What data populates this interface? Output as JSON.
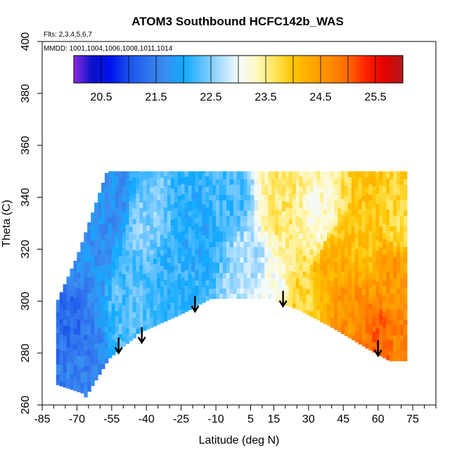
{
  "chart_data": {
    "type": "heatmap",
    "title": "ATOM3 Southbound HCFC142b_WAS",
    "flights_note": "Flts: 2,3,4,5,6,7",
    "dates_note": "MMDD: 1001,1004,1006,1008,1011,1014",
    "xlabel": "Latitude (deg N)",
    "ylabel": "Theta (C)",
    "xlim": [
      -85,
      85
    ],
    "ylim": [
      260,
      400
    ],
    "x_major_ticks": [
      -85,
      -70,
      -55,
      -40,
      -25,
      -10,
      5,
      15,
      30,
      45,
      60,
      75
    ],
    "x_minor_ticks": [
      -80,
      -75,
      -65,
      -60,
      -50,
      -45,
      -35,
      -30,
      -20,
      -15,
      -5,
      0,
      10,
      20,
      25,
      35,
      40,
      50,
      55,
      65,
      70,
      80,
      85
    ],
    "y_ticks": [
      260,
      280,
      300,
      320,
      340,
      360,
      380,
      400
    ],
    "colorbar": {
      "range": [
        20,
        26
      ],
      "tick_values": [
        20.5,
        21.5,
        22.5,
        23.5,
        24.5,
        25.5
      ],
      "tick_labels": [
        "20.5",
        "21.5",
        "22.5",
        "23.5",
        "24.5",
        "25.5"
      ],
      "colors": [
        "#8a2be2",
        "#0a12c8",
        "#0012ee",
        "#1a50ea",
        "#2f72ee",
        "#3a8ef0",
        "#11aaff",
        "#5cc0ff",
        "#a8dcff",
        "#f4fbff",
        "#fff8c0",
        "#ffe45a",
        "#ffc400",
        "#ffa800",
        "#ff8c00",
        "#ff6a00",
        "#ff2000",
        "#e00000",
        "#b11a1a"
      ]
    },
    "field_samples": [
      {
        "lat": -72,
        "theta": 290,
        "value": 21.3
      },
      {
        "lat": -70,
        "theta": 270,
        "value": 21.5
      },
      {
        "lat": -62,
        "theta": 320,
        "value": 21.7
      },
      {
        "lat": -55,
        "theta": 340,
        "value": 21.7
      },
      {
        "lat": -48,
        "theta": 300,
        "value": 22.3
      },
      {
        "lat": -40,
        "theta": 330,
        "value": 22.5
      },
      {
        "lat": -30,
        "theta": 310,
        "value": 22.1
      },
      {
        "lat": -18,
        "theta": 325,
        "value": 22.0
      },
      {
        "lat": -5,
        "theta": 340,
        "value": 22.2
      },
      {
        "lat": 5,
        "theta": 315,
        "value": 22.7
      },
      {
        "lat": 15,
        "theta": 305,
        "value": 23.1
      },
      {
        "lat": 18,
        "theta": 335,
        "value": 23.6
      },
      {
        "lat": 25,
        "theta": 300,
        "value": 23.8
      },
      {
        "lat": 35,
        "theta": 330,
        "value": 23.2
      },
      {
        "lat": 40,
        "theta": 315,
        "value": 24.3
      },
      {
        "lat": 48,
        "theta": 295,
        "value": 24.6
      },
      {
        "lat": 55,
        "theta": 325,
        "value": 24.0
      },
      {
        "lat": 60,
        "theta": 285,
        "value": 25.0
      },
      {
        "lat": 66,
        "theta": 310,
        "value": 24.5
      },
      {
        "lat": 70,
        "theta": 330,
        "value": 23.8
      },
      {
        "lat": 70,
        "theta": 280,
        "value": 24.8
      }
    ],
    "tropopause_arrows": [
      {
        "lat": -52,
        "theta": 280
      },
      {
        "lat": -42,
        "theta": 284
      },
      {
        "lat": -19,
        "theta": 296
      },
      {
        "lat": 19,
        "theta": 298
      },
      {
        "lat": 60,
        "theta": 279
      }
    ]
  }
}
